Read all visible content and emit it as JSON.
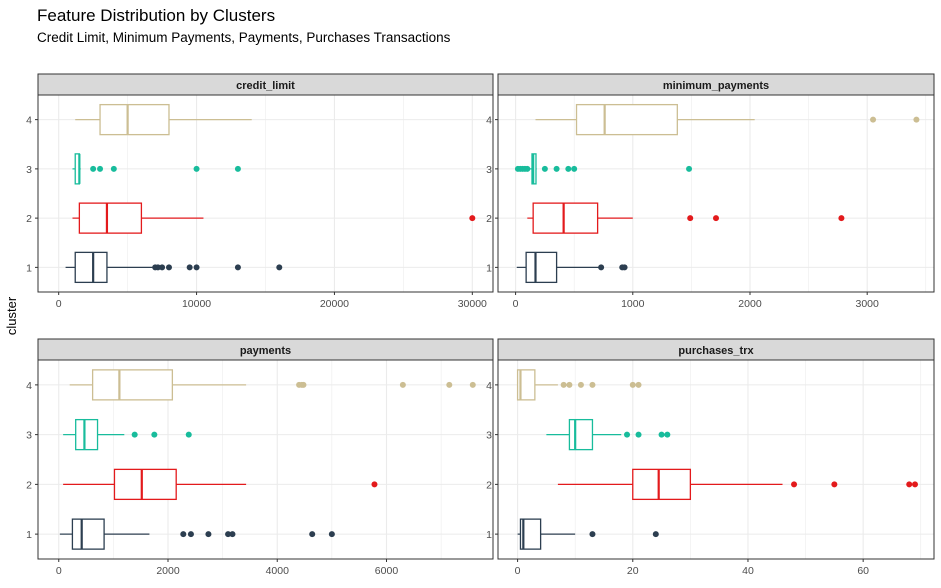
{
  "title": "Feature Distribution by Clusters",
  "subtitle": "Credit Limit, Minimum Payments, Payments, Purchases Transactions",
  "y_axis_label": "cluster",
  "colors": {
    "1": "#2c3e50",
    "2": "#e31a1c",
    "3": "#18bc9c",
    "4": "#ccbe93",
    "strip_bg": "#d9d9d9",
    "grid": "#ebebeb",
    "panel_border": "#333333"
  },
  "chart_data": [
    {
      "type": "boxplot",
      "orientation": "horizontal",
      "facet": "credit_limit",
      "categories": [
        "1",
        "2",
        "3",
        "4"
      ],
      "xlim": [
        -1500,
        31500
      ],
      "x_ticks": [
        0,
        10000,
        20000,
        30000
      ],
      "grid": true,
      "series": [
        {
          "cluster": "1",
          "whisker_low": 500,
          "q1": 1200,
          "median": 2500,
          "q3": 3500,
          "whisker_high": 6800,
          "outliers": [
            7000,
            7200,
            7500,
            8000,
            9500,
            10000,
            13000,
            16000
          ]
        },
        {
          "cluster": "2",
          "whisker_low": 1000,
          "q1": 1500,
          "median": 3500,
          "q3": 6000,
          "whisker_high": 10500,
          "outliers": [
            30000
          ]
        },
        {
          "cluster": "3",
          "whisker_low": 1000,
          "q1": 1200,
          "median": 1500,
          "q3": 1500,
          "whisker_high": 1600,
          "outliers": [
            2500,
            3000,
            4000,
            10000,
            13000
          ]
        },
        {
          "cluster": "4",
          "whisker_low": 1200,
          "q1": 3000,
          "median": 5000,
          "q3": 8000,
          "whisker_high": 14000,
          "outliers": []
        }
      ]
    },
    {
      "type": "boxplot",
      "orientation": "horizontal",
      "facet": "minimum_payments",
      "categories": [
        "1",
        "2",
        "3",
        "4"
      ],
      "xlim": [
        -150,
        3570
      ],
      "x_ticks": [
        0,
        1000,
        2000,
        3000
      ],
      "grid": true,
      "series": [
        {
          "cluster": "1",
          "whisker_low": 10,
          "q1": 90,
          "median": 170,
          "q3": 350,
          "whisker_high": 720,
          "outliers": [
            730,
            910,
            930
          ]
        },
        {
          "cluster": "2",
          "whisker_low": 100,
          "q1": 150,
          "median": 410,
          "q3": 700,
          "whisker_high": 1000,
          "outliers": [
            1490,
            1710,
            2780
          ]
        },
        {
          "cluster": "3",
          "whisker_low": 120,
          "q1": 140,
          "median": 150,
          "q3": 160,
          "whisker_high": 180,
          "outliers": [
            20,
            40,
            60,
            80,
            100,
            250,
            350,
            450,
            500,
            1480
          ]
        },
        {
          "cluster": "4",
          "whisker_low": 170,
          "q1": 520,
          "median": 760,
          "q3": 1380,
          "whisker_high": 2040,
          "outliers": [
            3050,
            3420
          ]
        }
      ]
    },
    {
      "type": "boxplot",
      "orientation": "horizontal",
      "facet": "payments",
      "categories": [
        "1",
        "2",
        "3",
        "4"
      ],
      "xlim": [
        -380,
        7950
      ],
      "x_ticks": [
        0,
        2000,
        4000,
        6000
      ],
      "grid": true,
      "series": [
        {
          "cluster": "1",
          "whisker_low": 20,
          "q1": 250,
          "median": 420,
          "q3": 830,
          "whisker_high": 1660,
          "outliers": [
            2280,
            2420,
            2740,
            3100,
            3180,
            4640,
            5000
          ]
        },
        {
          "cluster": "2",
          "whisker_low": 80,
          "q1": 1020,
          "median": 1520,
          "q3": 2150,
          "whisker_high": 3430,
          "outliers": [
            5780
          ]
        },
        {
          "cluster": "3",
          "whisker_low": 80,
          "q1": 310,
          "median": 470,
          "q3": 710,
          "whisker_high": 1200,
          "outliers": [
            1390,
            1750,
            2380
          ]
        },
        {
          "cluster": "4",
          "whisker_low": 200,
          "q1": 620,
          "median": 1110,
          "q3": 2080,
          "whisker_high": 3430,
          "outliers": [
            4400,
            4450,
            4480,
            6300,
            7150,
            7580
          ]
        }
      ]
    },
    {
      "type": "boxplot",
      "orientation": "horizontal",
      "facet": "purchases_trx",
      "categories": [
        "1",
        "2",
        "3",
        "4"
      ],
      "xlim": [
        -3.4,
        72.3
      ],
      "x_ticks": [
        0,
        20,
        40,
        60
      ],
      "grid": true,
      "series": [
        {
          "cluster": "1",
          "whisker_low": 0,
          "q1": 0.5,
          "median": 1,
          "q3": 4,
          "whisker_high": 10,
          "outliers": [
            13,
            24
          ]
        },
        {
          "cluster": "2",
          "whisker_low": 7,
          "q1": 20,
          "median": 24.5,
          "q3": 30,
          "whisker_high": 46,
          "outliers": [
            48,
            55,
            68,
            69
          ]
        },
        {
          "cluster": "3",
          "whisker_low": 5,
          "q1": 9,
          "median": 10,
          "q3": 13,
          "whisker_high": 18,
          "outliers": [
            19,
            21,
            25,
            26
          ]
        },
        {
          "cluster": "4",
          "whisker_low": 0,
          "q1": 0,
          "median": 0.5,
          "q3": 3,
          "whisker_high": 7,
          "outliers": [
            8,
            9,
            11,
            13,
            20,
            21
          ]
        }
      ]
    }
  ]
}
